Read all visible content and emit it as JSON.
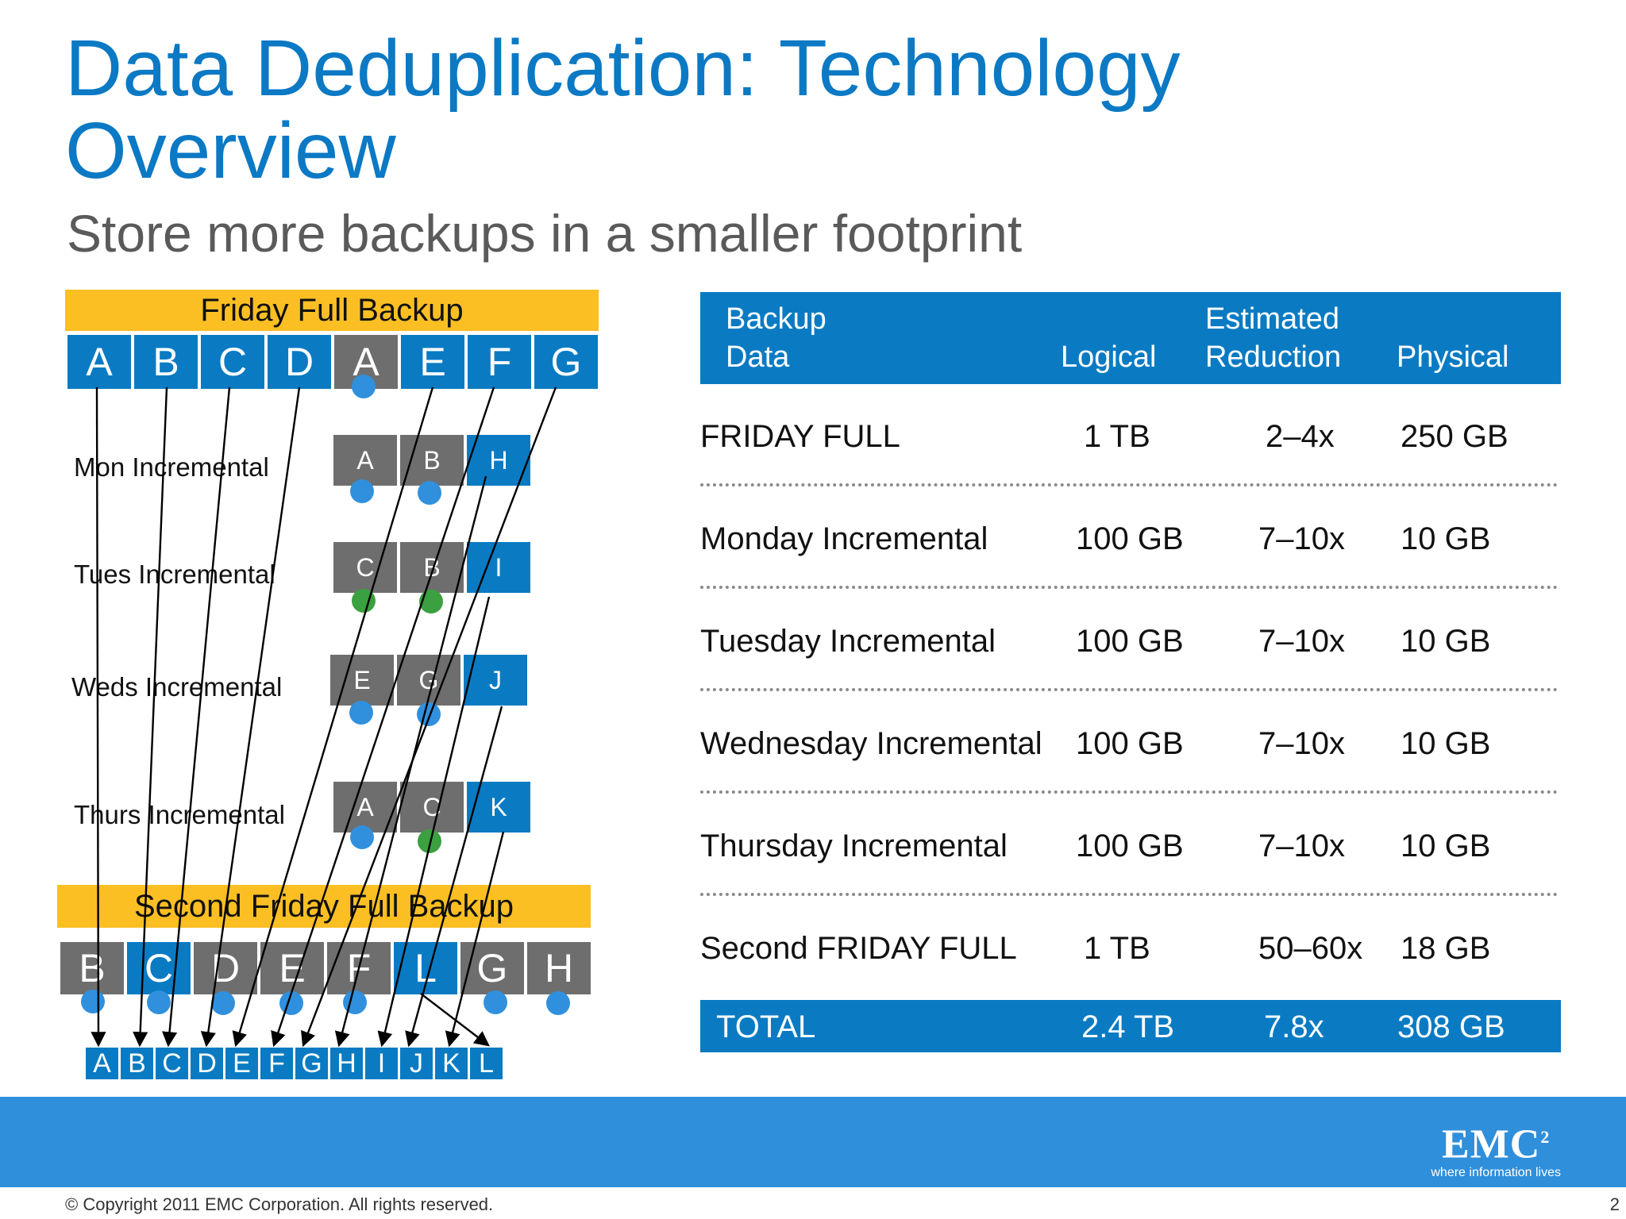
{
  "slide": {
    "title": "Data Deduplication: Technology Overview",
    "subtitle": "Store more backups in a smaller footprint",
    "copyright": "© Copyright 2011 EMC Corporation. All rights reserved.",
    "page_number": "2",
    "logo": {
      "word": "EMC",
      "superscript": "2",
      "tagline": "where information lives"
    }
  },
  "diagram": {
    "top_banner": "Friday Full Backup",
    "top_blocks": [
      "A",
      "B",
      "C",
      "D",
      "A",
      "E",
      "F",
      "G"
    ],
    "incrementals": [
      {
        "label": "Mon Incremental",
        "blocks": [
          "A",
          "B",
          "H"
        ]
      },
      {
        "label": "Tues Incremental",
        "blocks": [
          "C",
          "B",
          "I"
        ]
      },
      {
        "label": "Weds Incremental",
        "blocks": [
          "E",
          "G",
          "J"
        ]
      },
      {
        "label": "Thurs Incremental",
        "blocks": [
          "A",
          "C",
          "K"
        ]
      }
    ],
    "bottom_banner": "Second Friday Full Backup",
    "second_full_blocks": [
      "B",
      "C",
      "D",
      "E",
      "F",
      "L",
      "G",
      "H"
    ],
    "unique_store": [
      "A",
      "B",
      "C",
      "D",
      "E",
      "F",
      "G",
      "H",
      "I",
      "J",
      "K",
      "L"
    ],
    "colors": {
      "unique_block": "#0a7bc3",
      "duplicate_block": "#6e6e6e",
      "banner": "#fbbf24",
      "marker_blue": "#3090dd",
      "marker_green": "#3ba03f"
    }
  },
  "table": {
    "headers": {
      "backup_data": "Backup Data",
      "logical": "Logical",
      "estimated_reduction": "Estimated Reduction",
      "physical": "Physical"
    },
    "rows": [
      {
        "name": "FRIDAY FULL",
        "logical": "1 TB",
        "reduction": "2–4x",
        "physical": "250 GB"
      },
      {
        "name": "Monday Incremental",
        "logical": "100 GB",
        "reduction": "7–10x",
        "physical": "10 GB"
      },
      {
        "name": "Tuesday Incremental",
        "logical": "100 GB",
        "reduction": "7–10x",
        "physical": "10 GB"
      },
      {
        "name": "Wednesday Incremental",
        "logical": "100 GB",
        "reduction": "7–10x",
        "physical": "10 GB"
      },
      {
        "name": "Thursday Incremental",
        "logical": "100 GB",
        "reduction": "7–10x",
        "physical": "10 GB"
      },
      {
        "name": "Second FRIDAY FULL",
        "logical": "1 TB",
        "reduction": "50–60x",
        "physical": "18 GB"
      }
    ],
    "total": {
      "name": "TOTAL",
      "logical": "2.4 TB",
      "reduction": "7.8x",
      "physical": "308 GB"
    },
    "colors": {
      "header_bg": "#0a7bc3"
    }
  }
}
